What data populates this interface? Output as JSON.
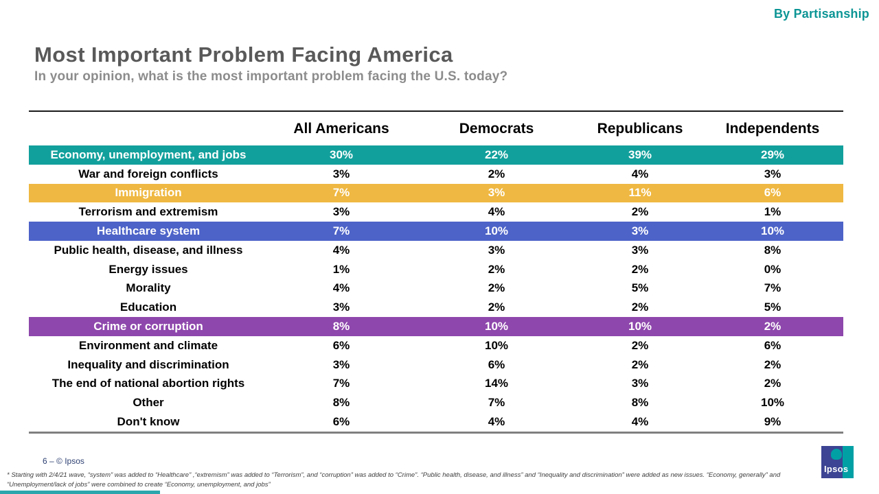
{
  "page": {
    "corner_label": "By Partisanship",
    "title": "Most Important Problem Facing America",
    "subtitle": "In your opinion, what is the most important problem facing the U.S. today?",
    "footer_text": "6 –   © Ipsos",
    "footnote": "* Starting with 2/4/21 wave, “system” was added to “Healthcare” ,“extremism” was added to “Terrorism”, and “corruption” was added to “Crime”. “Public health, disease, and illness” and “Inequality and discrimination” were added as new issues. “Economy, generally” and “Unemployment/lack of jobs” were combined to create “Economy, unemployment, and jobs”",
    "logo_text": "Ipsos"
  },
  "colors": {
    "accent_teal": "#0d9595",
    "title_gray": "#595959",
    "subtitle_gray": "#8c8c8c",
    "footer_navy": "#2e4172",
    "logo_navy": "#3c4493",
    "logo_teal": "#00a0a5",
    "highlights": {
      "teal": "#12a09c",
      "yellow": "#efb842",
      "blue": "#4d63c8",
      "purple": "#8e47ac"
    }
  },
  "chart_data": {
    "type": "table",
    "title": "Most Important Problem Facing America",
    "subtitle": "In your opinion, what is the most important problem facing the U.S. today?",
    "unit": "%",
    "columns": [
      "All Americans",
      "Democrats",
      "Republicans",
      "Independents"
    ],
    "rows": [
      {
        "label": "Economy, unemployment, and jobs",
        "values": [
          30,
          22,
          39,
          29
        ],
        "highlight": "teal"
      },
      {
        "label": "War and foreign conflicts",
        "values": [
          3,
          2,
          4,
          3
        ],
        "highlight": null
      },
      {
        "label": "Immigration",
        "values": [
          7,
          3,
          11,
          6
        ],
        "highlight": "yellow"
      },
      {
        "label": "Terrorism and extremism",
        "values": [
          3,
          4,
          2,
          1
        ],
        "highlight": null
      },
      {
        "label": "Healthcare system",
        "values": [
          7,
          10,
          3,
          10
        ],
        "highlight": "blue"
      },
      {
        "label": "Public health, disease, and illness",
        "values": [
          4,
          3,
          3,
          8
        ],
        "highlight": null
      },
      {
        "label": "Energy issues",
        "values": [
          1,
          2,
          2,
          0
        ],
        "highlight": null
      },
      {
        "label": "Morality",
        "values": [
          4,
          2,
          5,
          7
        ],
        "highlight": null
      },
      {
        "label": "Education",
        "values": [
          3,
          2,
          2,
          5
        ],
        "highlight": null
      },
      {
        "label": "Crime or corruption",
        "values": [
          8,
          10,
          10,
          2
        ],
        "highlight": "purple"
      },
      {
        "label": "Environment and climate",
        "values": [
          6,
          10,
          2,
          6
        ],
        "highlight": null
      },
      {
        "label": "Inequality and discrimination",
        "values": [
          3,
          6,
          2,
          2
        ],
        "highlight": null
      },
      {
        "label": "The end of national abortion rights",
        "values": [
          7,
          14,
          3,
          2
        ],
        "highlight": null
      },
      {
        "label": "Other",
        "values": [
          8,
          7,
          8,
          10
        ],
        "highlight": null
      },
      {
        "label": "Don't know",
        "values": [
          6,
          4,
          4,
          9
        ],
        "highlight": null
      }
    ]
  }
}
